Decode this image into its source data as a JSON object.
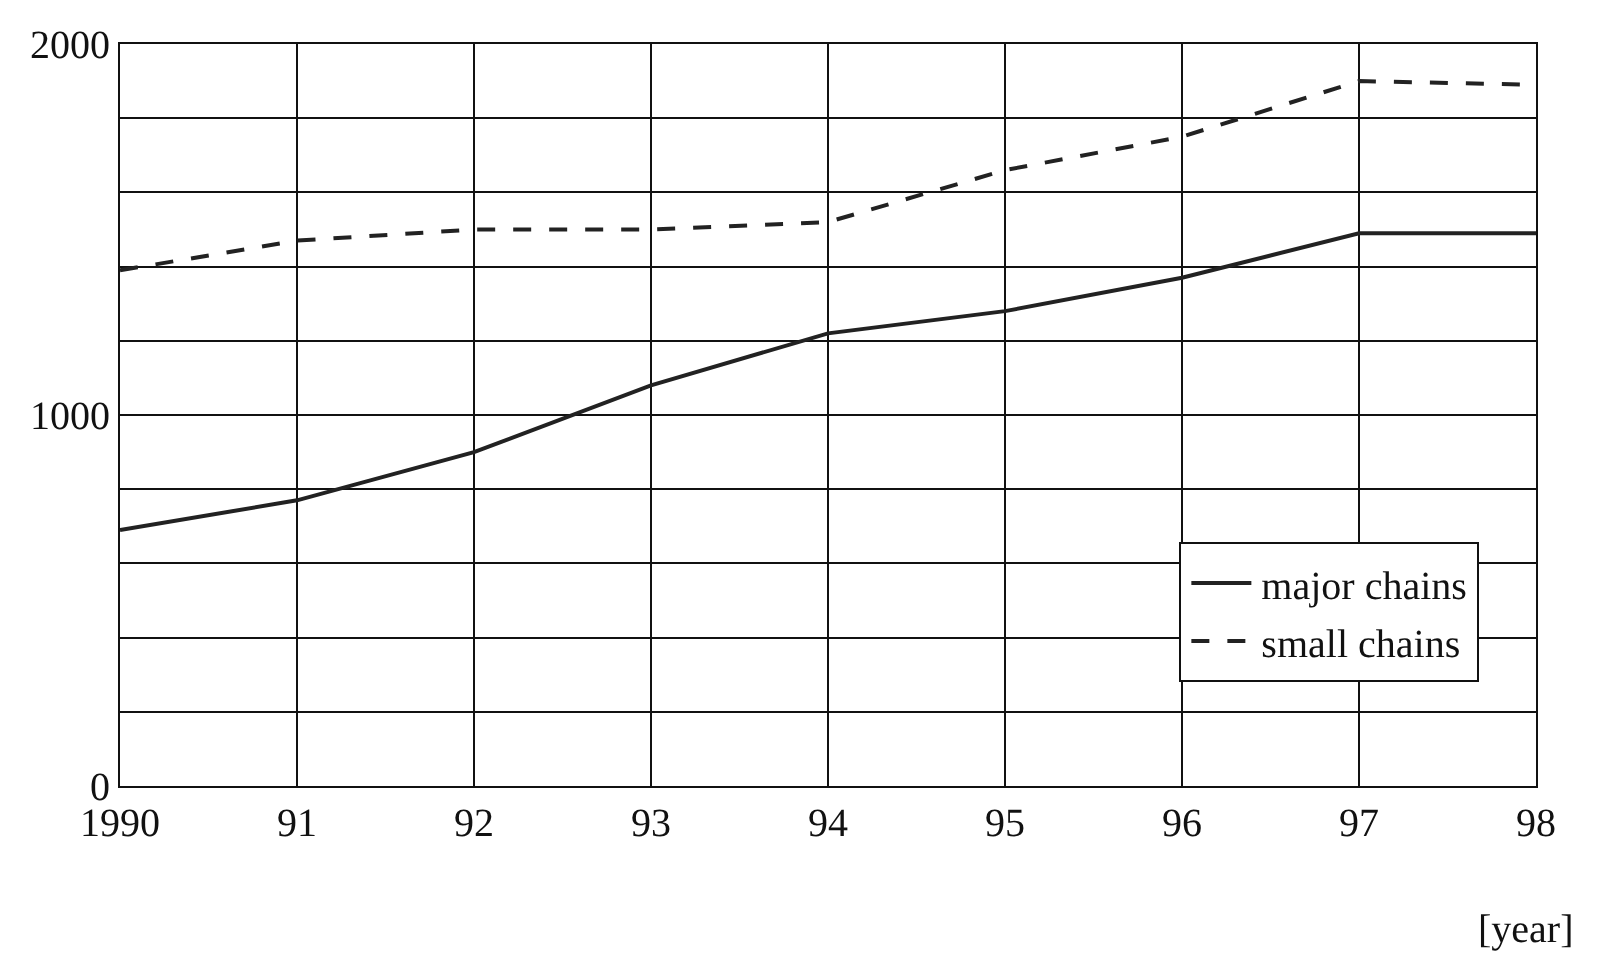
{
  "chart_data": {
    "type": "line",
    "xlabel": "[year]",
    "x": [
      1990,
      1991,
      1992,
      1993,
      1994,
      1995,
      1996,
      1997,
      1998
    ],
    "series": [
      {
        "name": "major chains",
        "color": "#222222",
        "line_style": "solid",
        "values": [
          690,
          770,
          900,
          1080,
          1220,
          1280,
          1370,
          1490,
          1490
        ]
      },
      {
        "name": "small chains",
        "color": "#222222",
        "line_style": "dashed",
        "values": [
          1390,
          1470,
          1500,
          1500,
          1520,
          1660,
          1750,
          1900,
          1890
        ]
      }
    ],
    "xlim": [
      1990,
      1998
    ],
    "xticks": [
      1990,
      {
        "value": 1991,
        "label": "91"
      },
      {
        "value": 1992,
        "label": "92"
      },
      {
        "value": 1993,
        "label": "93"
      },
      {
        "value": 1994,
        "label": "94"
      },
      {
        "value": 1995,
        "label": "95"
      },
      {
        "value": 1996,
        "label": "96"
      },
      {
        "value": 1997,
        "label": "97"
      },
      {
        "value": 1998,
        "label": "98"
      }
    ],
    "ylim": [
      0,
      2000
    ],
    "yticks": [
      0,
      {
        "value": 200,
        "label": null
      },
      {
        "value": 400,
        "label": null
      },
      {
        "value": 600,
        "label": null
      },
      {
        "value": 800,
        "label": null
      },
      1000,
      {
        "value": 1200,
        "label": null
      },
      {
        "value": 1400,
        "label": null
      },
      {
        "value": 1600,
        "label": null
      },
      {
        "value": 1800,
        "label": null
      },
      2000
    ],
    "grid": true,
    "legend": "bottom right",
    "marker": "none"
  }
}
